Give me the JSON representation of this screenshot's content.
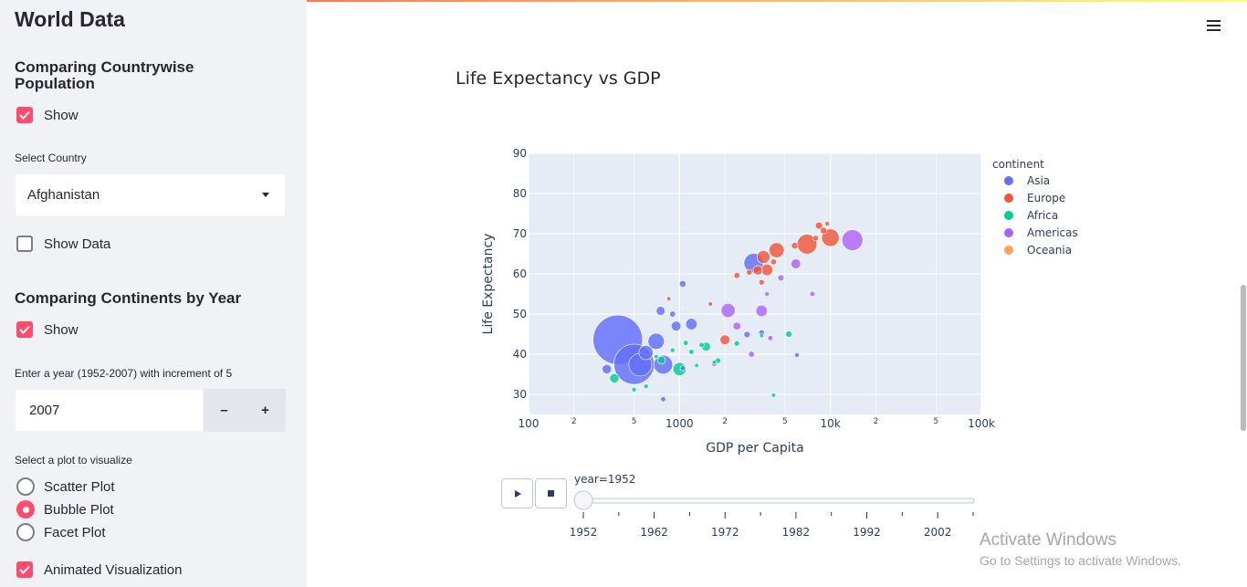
{
  "sidebar": {
    "title": "World Data",
    "section1": {
      "heading": "Comparing Countrywise Population",
      "show_label": "Show",
      "show_checked": true,
      "select_label": "Select Country",
      "select_value": "Afghanistan",
      "show_data_label": "Show Data",
      "show_data_checked": false
    },
    "section2": {
      "heading": "Comparing Continents by Year",
      "show_label": "Show",
      "show_checked": true,
      "year_input_label": "Enter a year (1952-2007) with increment of 5",
      "year_value": "2007",
      "minus_label": "–",
      "plus_label": "+",
      "plot_select_label": "Select a plot to visualize",
      "plot_options": [
        "Scatter Plot",
        "Bubble Plot",
        "Facet Plot"
      ],
      "plot_selected": "Bubble Plot",
      "animated_label": "Animated Visualization",
      "animated_checked": true
    }
  },
  "main": {
    "title": "Life Expectancy vs GDP"
  },
  "chart_data": {
    "type": "scatter",
    "subtype": "bubble",
    "title": "",
    "xlabel": "GDP per Capita",
    "ylabel": "Life Expectancy",
    "x_scale": "log",
    "xlim": [
      100,
      100000
    ],
    "ylim": [
      25,
      90
    ],
    "x_ticks_major": [
      "100",
      "1000",
      "10k",
      "100k"
    ],
    "x_ticks_minor": [
      "2",
      "5",
      "2",
      "5",
      "2",
      "5"
    ],
    "y_ticks": [
      "30",
      "40",
      "50",
      "60",
      "70",
      "80",
      "90"
    ],
    "grid": true,
    "legend_title": "continent",
    "legend_position": "right",
    "series": [
      {
        "name": "Asia",
        "color": "#636efa",
        "points": [
          {
            "x": 390,
            "y": 43.6,
            "size": 556
          },
          {
            "x": 500,
            "y": 37.5,
            "size": 372
          },
          {
            "x": 550,
            "y": 37.4,
            "size": 120
          },
          {
            "x": 780,
            "y": 37.4,
            "size": 82
          },
          {
            "x": 700,
            "y": 43.2,
            "size": 60
          },
          {
            "x": 3100,
            "y": 62.7,
            "size": 86
          },
          {
            "x": 600,
            "y": 40.4,
            "size": 46
          },
          {
            "x": 1200,
            "y": 47.5,
            "size": 30
          },
          {
            "x": 950,
            "y": 47.0,
            "size": 22
          },
          {
            "x": 750,
            "y": 50.8,
            "size": 18
          },
          {
            "x": 330,
            "y": 36.3,
            "size": 20
          },
          {
            "x": 1050,
            "y": 57.5,
            "size": 10
          },
          {
            "x": 900,
            "y": 50.0,
            "size": 8
          },
          {
            "x": 3500,
            "y": 45.4,
            "size": 7
          },
          {
            "x": 2800,
            "y": 44.9,
            "size": 9
          },
          {
            "x": 780,
            "y": 28.8,
            "size": 6
          },
          {
            "x": 6000,
            "y": 39.8,
            "size": 5
          },
          {
            "x": 1050,
            "y": 36.5,
            "size": 6
          }
        ]
      },
      {
        "name": "Europe",
        "color": "#ef553b",
        "points": [
          {
            "x": 7000,
            "y": 67.4,
            "size": 90
          },
          {
            "x": 10000,
            "y": 69.0,
            "size": 70
          },
          {
            "x": 4400,
            "y": 65.9,
            "size": 52
          },
          {
            "x": 3600,
            "y": 64.2,
            "size": 38
          },
          {
            "x": 3800,
            "y": 61.0,
            "size": 30
          },
          {
            "x": 3300,
            "y": 60.9,
            "size": 20
          },
          {
            "x": 2000,
            "y": 43.6,
            "size": 22
          },
          {
            "x": 8400,
            "y": 72.0,
            "size": 12
          },
          {
            "x": 9000,
            "y": 70.8,
            "size": 10
          },
          {
            "x": 5800,
            "y": 67.0,
            "size": 10
          },
          {
            "x": 4200,
            "y": 63.0,
            "size": 8
          },
          {
            "x": 2400,
            "y": 59.6,
            "size": 8
          },
          {
            "x": 2900,
            "y": 60.4,
            "size": 7
          },
          {
            "x": 3500,
            "y": 57.9,
            "size": 7
          },
          {
            "x": 8000,
            "y": 68.9,
            "size": 7
          },
          {
            "x": 9500,
            "y": 72.5,
            "size": 5
          },
          {
            "x": 850,
            "y": 53.8,
            "size": 4
          },
          {
            "x": 1600,
            "y": 52.5,
            "size": 4
          }
        ]
      },
      {
        "name": "Africa",
        "color": "#00cc96",
        "points": [
          {
            "x": 1000,
            "y": 36.3,
            "size": 40
          },
          {
            "x": 370,
            "y": 34.0,
            "size": 20
          },
          {
            "x": 1500,
            "y": 41.9,
            "size": 18
          },
          {
            "x": 760,
            "y": 38.5,
            "size": 14
          },
          {
            "x": 5300,
            "y": 45.0,
            "size": 9
          },
          {
            "x": 1800,
            "y": 38.4,
            "size": 7
          },
          {
            "x": 2400,
            "y": 42.7,
            "size": 7
          },
          {
            "x": 1400,
            "y": 42.3,
            "size": 6
          },
          {
            "x": 1200,
            "y": 40.6,
            "size": 6
          },
          {
            "x": 1100,
            "y": 42.8,
            "size": 6
          },
          {
            "x": 500,
            "y": 31.2,
            "size": 5
          },
          {
            "x": 600,
            "y": 32.0,
            "size": 5
          },
          {
            "x": 900,
            "y": 41.0,
            "size": 5
          },
          {
            "x": 1300,
            "y": 37.2,
            "size": 4
          },
          {
            "x": 3500,
            "y": 44.6,
            "size": 4
          },
          {
            "x": 4200,
            "y": 29.8,
            "size": 4
          },
          {
            "x": 700,
            "y": 39.4,
            "size": 4
          },
          {
            "x": 1700,
            "y": 38.0,
            "size": 4
          }
        ]
      },
      {
        "name": "Americas",
        "color": "#ab63fa",
        "points": [
          {
            "x": 13990,
            "y": 68.4,
            "size": 100
          },
          {
            "x": 2100,
            "y": 50.9,
            "size": 45
          },
          {
            "x": 3500,
            "y": 50.8,
            "size": 30
          },
          {
            "x": 5900,
            "y": 62.5,
            "size": 22
          },
          {
            "x": 2400,
            "y": 47.0,
            "size": 14
          },
          {
            "x": 4700,
            "y": 59.0,
            "size": 9
          },
          {
            "x": 3000,
            "y": 40.0,
            "size": 8
          },
          {
            "x": 7600,
            "y": 55.0,
            "size": 6
          },
          {
            "x": 4000,
            "y": 44.0,
            "size": 6
          },
          {
            "x": 1700,
            "y": 37.5,
            "size": 5
          },
          {
            "x": 3800,
            "y": 55.0,
            "size": 5
          }
        ]
      },
      {
        "name": "Oceania",
        "color": "#ffa15a",
        "points": []
      }
    ]
  },
  "slider": {
    "current_label": "year=1952",
    "play_icon": "play-icon",
    "stop_icon": "stop-icon",
    "ticks": [
      "1952",
      "1962",
      "1972",
      "1982",
      "1992",
      "2002"
    ],
    "value": 1952,
    "min": 1952,
    "max": 2007
  },
  "watermark": {
    "line1": "Activate Windows",
    "line2": "Go to Settings to activate Windows."
  },
  "colors": {
    "accent": "#ff4b6e",
    "sidebar_bg": "#f0f2f6",
    "plot_bg": "#e5ecf6"
  }
}
